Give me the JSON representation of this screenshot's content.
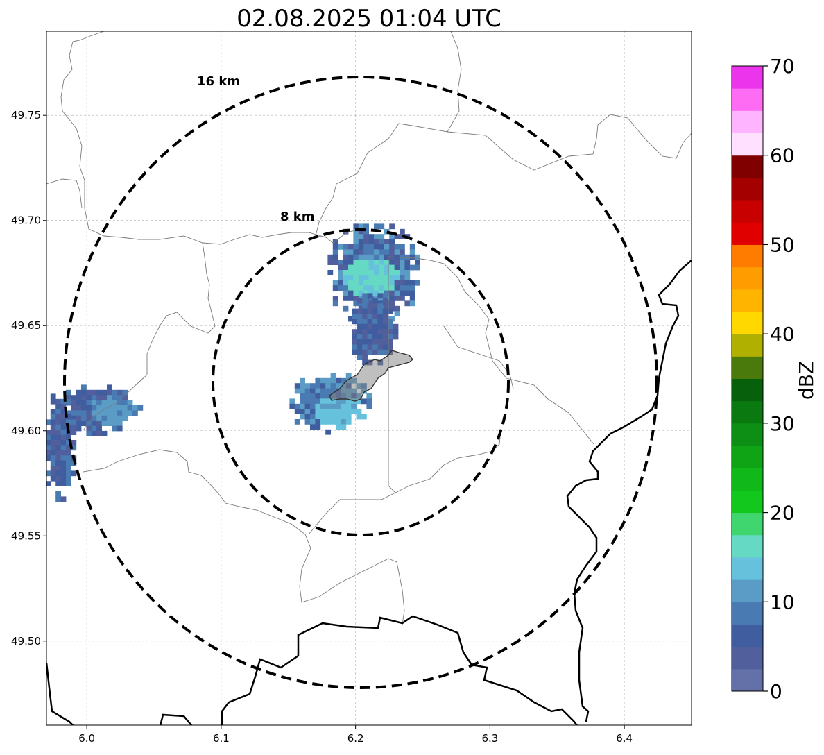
{
  "title": "02.08.2025 01:04 UTC",
  "map": {
    "lon_range": [
      5.97,
      6.45
    ],
    "lat_range": [
      49.46,
      49.79
    ],
    "x_ticks": [
      "6.0",
      "6.1",
      "6.2",
      "6.3",
      "6.4"
    ],
    "y_ticks": [
      "49.50",
      "49.55",
      "49.60",
      "49.65",
      "49.70",
      "49.75"
    ],
    "gridlines": true,
    "range_rings": [
      {
        "label": "8 km",
        "radius_km": 8
      },
      {
        "label": "16 km",
        "radius_km": 16
      }
    ],
    "center": {
      "lon": 6.204,
      "lat": 49.623
    }
  },
  "colorbar": {
    "label": "dBZ",
    "ticks": [
      "0",
      "10",
      "20",
      "30",
      "40",
      "50",
      "60",
      "70"
    ],
    "colors": [
      "#6470a8",
      "#515f9c",
      "#405e9f",
      "#4a7ab2",
      "#5a9cc6",
      "#66c2dc",
      "#66d9c4",
      "#40d66f",
      "#12c81c",
      "#10b81a",
      "#0ea416",
      "#0c8f14",
      "#0a7a10",
      "#07600c",
      "#4a7a0c",
      "#b0b000",
      "#ffd800",
      "#ffb400",
      "#ff9c00",
      "#ff7c00",
      "#e00000",
      "#c80000",
      "#a40000",
      "#800000",
      "#ffe0ff",
      "#ffb4ff",
      "#ff6cf4",
      "#ec34ec"
    ]
  }
}
